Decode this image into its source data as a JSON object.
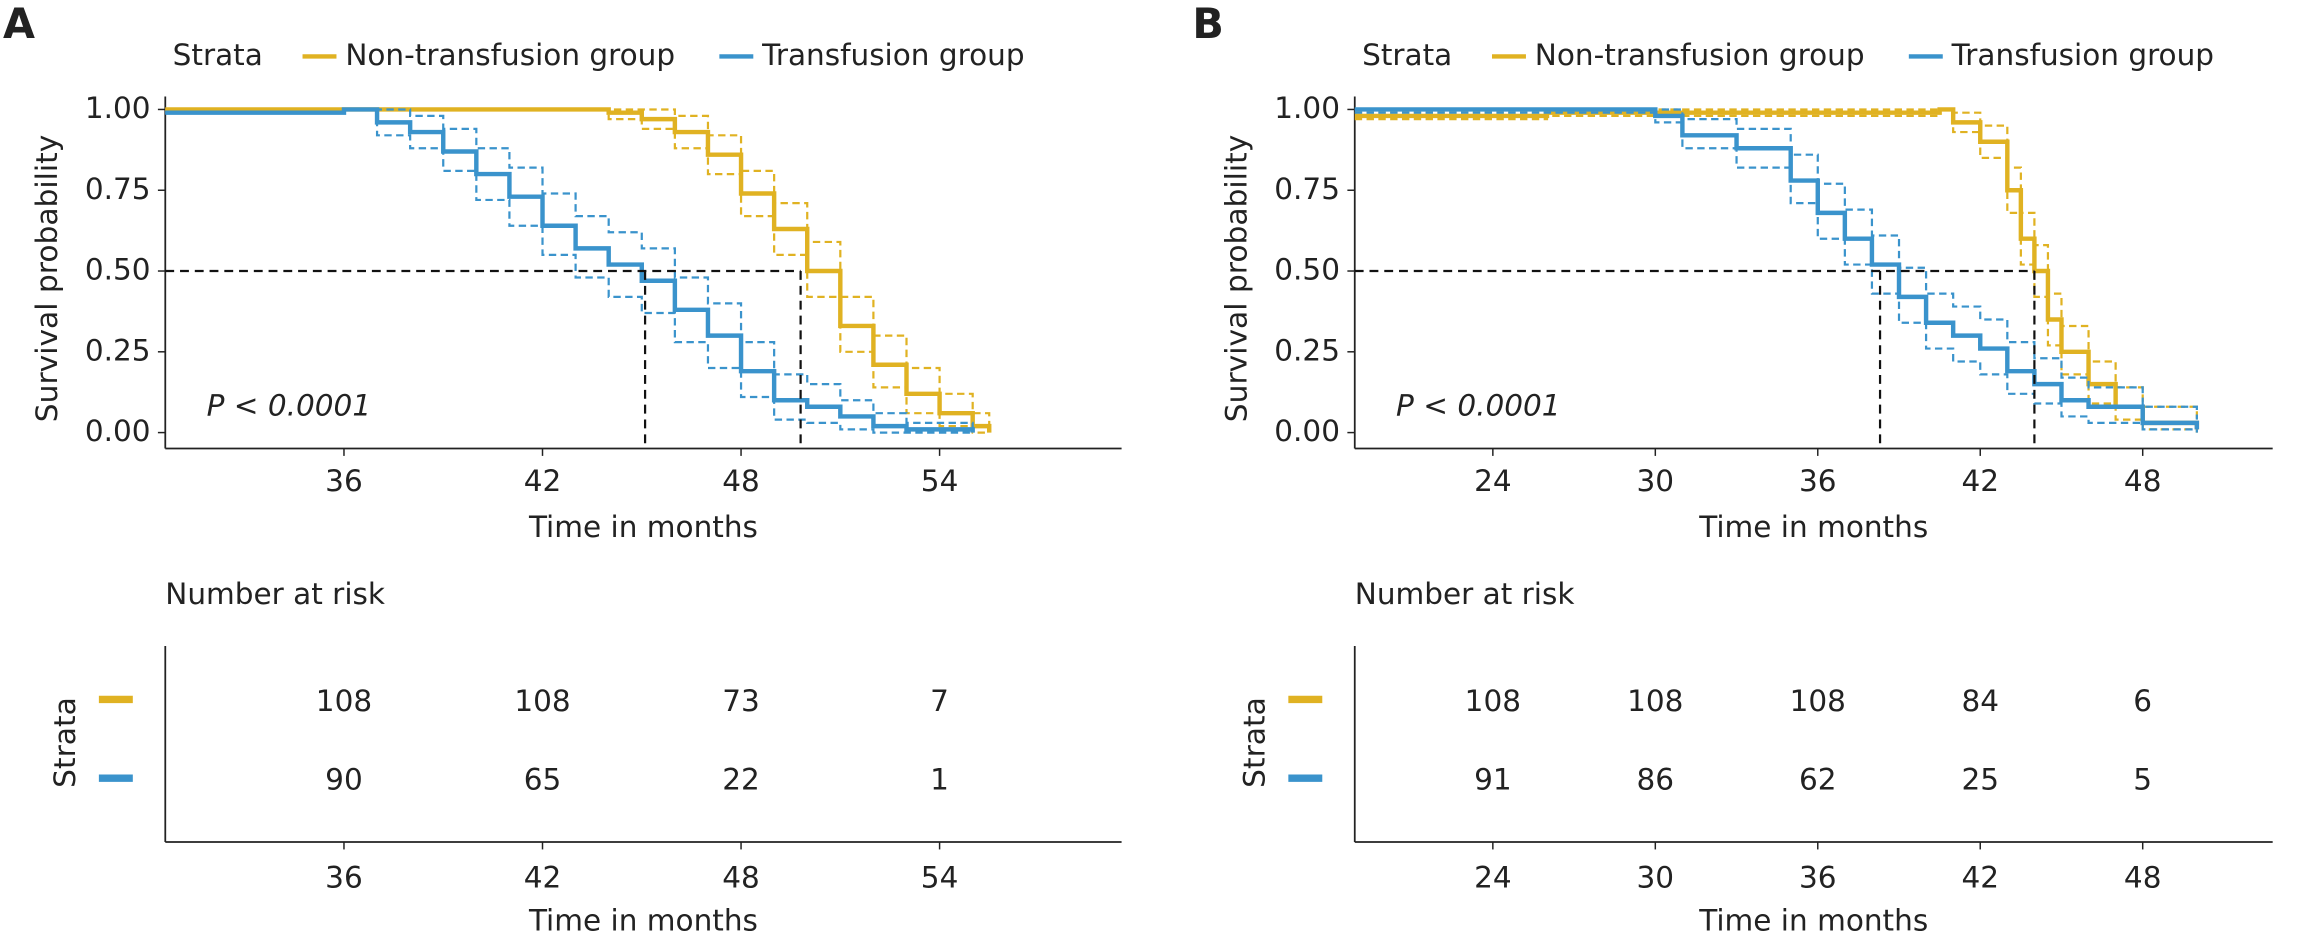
{
  "chart_data": [
    {
      "type": "survival",
      "panel_label": "A",
      "legend_title": "Strata",
      "xlabel": "Time in months",
      "ylabel": "Survival probability",
      "annotation": "P < 0.0001",
      "xlim": [
        30.6,
        59.5
      ],
      "xticks": [
        36,
        42,
        48,
        54
      ],
      "ylim": [
        -0.04,
        1.04
      ],
      "yticks": [
        {
          "value": 0,
          "label": "0.00"
        },
        {
          "value": 0.25,
          "label": "0.25"
        },
        {
          "value": 0.5,
          "label": "0.50"
        },
        {
          "value": 0.75,
          "label": "0.75"
        },
        {
          "value": 1,
          "label": "1.00"
        }
      ],
      "median_line_y": 0.5,
      "series": [
        {
          "name": "Non-transfusion group",
          "color": "#e0b222",
          "x": [
            30.6,
            43.5,
            44,
            45,
            46,
            47,
            48,
            49,
            50,
            51,
            52,
            53,
            54,
            55,
            55.5
          ],
          "values": [
            1,
            1,
            0.99,
            0.97,
            0.93,
            0.86,
            0.74,
            0.63,
            0.5,
            0.33,
            0.21,
            0.12,
            0.06,
            0.02,
            0
          ],
          "ci_lower": [
            1,
            1,
            0.97,
            0.94,
            0.88,
            0.8,
            0.67,
            0.55,
            0.42,
            0.25,
            0.14,
            0.06,
            0.02,
            0,
            0
          ],
          "ci_upper": [
            1,
            1,
            1,
            1,
            0.98,
            0.92,
            0.81,
            0.71,
            0.59,
            0.42,
            0.3,
            0.2,
            0.12,
            0.06,
            0.01
          ],
          "median": 49.8
        },
        {
          "name": "Transfusion group",
          "color": "#3a93cc",
          "x": [
            30.6,
            36,
            37,
            38,
            39,
            40,
            41,
            42,
            43,
            44,
            45,
            46,
            47,
            48,
            49,
            50,
            51,
            52,
            53,
            55
          ],
          "values": [
            0.99,
            1,
            0.96,
            0.93,
            0.87,
            0.8,
            0.73,
            0.64,
            0.57,
            0.52,
            0.47,
            0.38,
            0.3,
            0.19,
            0.1,
            0.08,
            0.05,
            0.02,
            0.01,
            0
          ],
          "ci_lower": [
            0.99,
            1,
            0.92,
            0.88,
            0.81,
            0.72,
            0.64,
            0.55,
            0.48,
            0.42,
            0.37,
            0.28,
            0.2,
            0.11,
            0.04,
            0.03,
            0.01,
            0,
            0,
            0
          ],
          "ci_upper": [
            0.99,
            1,
            1,
            0.98,
            0.94,
            0.88,
            0.82,
            0.74,
            0.67,
            0.62,
            0.57,
            0.48,
            0.4,
            0.28,
            0.18,
            0.15,
            0.1,
            0.06,
            0.03,
            0.01
          ],
          "median": 45.1
        }
      ],
      "risk_table": {
        "title": "Number at risk",
        "ylabel": "Strata",
        "series": [
          {
            "color": "#e0b222",
            "values": [
              108,
              108,
              73,
              7
            ]
          },
          {
            "color": "#3a93cc",
            "values": [
              90,
              65,
              22,
              1
            ]
          }
        ]
      }
    },
    {
      "type": "survival",
      "panel_label": "B",
      "legend_title": "Strata",
      "xlabel": "Time in months",
      "ylabel": "Survival probability",
      "annotation": "P < 0.0001",
      "xlim": [
        18.9,
        52.8
      ],
      "xticks": [
        24,
        30,
        36,
        42,
        48
      ],
      "ylim": [
        -0.04,
        1.04
      ],
      "yticks": [
        {
          "value": 0,
          "label": "0.00"
        },
        {
          "value": 0.25,
          "label": "0.25"
        },
        {
          "value": 0.5,
          "label": "0.50"
        },
        {
          "value": 0.75,
          "label": "0.75"
        },
        {
          "value": 1,
          "label": "1.00"
        }
      ],
      "median_line_y": 0.5,
      "series": [
        {
          "name": "Non-transfusion group",
          "color": "#e0b222",
          "x": [
            18.9,
            26,
            40.5,
            41,
            42,
            43,
            43.5,
            44,
            44.5,
            45,
            46,
            47,
            48,
            50
          ],
          "values": [
            0.98,
            0.99,
            1,
            0.96,
            0.9,
            0.75,
            0.6,
            0.5,
            0.35,
            0.25,
            0.15,
            0.08,
            0.03,
            0.01
          ],
          "ci_lower": [
            0.97,
            0.98,
            1,
            0.93,
            0.85,
            0.68,
            0.52,
            0.42,
            0.27,
            0.18,
            0.09,
            0.04,
            0.01,
            0
          ],
          "ci_upper": [
            0.99,
            1,
            1,
            0.99,
            0.95,
            0.82,
            0.68,
            0.58,
            0.43,
            0.33,
            0.22,
            0.14,
            0.08,
            0.03
          ],
          "median": 44.0
        },
        {
          "name": "Transfusion group",
          "color": "#3a93cc",
          "x": [
            18.9,
            30,
            31,
            33,
            35,
            36,
            37,
            38,
            39,
            40,
            41,
            42,
            43,
            44,
            45,
            46,
            48,
            50
          ],
          "values": [
            1,
            0.98,
            0.92,
            0.88,
            0.78,
            0.68,
            0.6,
            0.52,
            0.42,
            0.34,
            0.3,
            0.26,
            0.19,
            0.15,
            0.1,
            0.08,
            0.03,
            0.01
          ],
          "ci_lower": [
            0.99,
            0.96,
            0.88,
            0.82,
            0.71,
            0.6,
            0.52,
            0.43,
            0.34,
            0.26,
            0.22,
            0.18,
            0.12,
            0.09,
            0.05,
            0.03,
            0.01,
            0
          ],
          "ci_upper": [
            1,
            1,
            0.97,
            0.94,
            0.86,
            0.77,
            0.69,
            0.61,
            0.51,
            0.43,
            0.39,
            0.35,
            0.28,
            0.23,
            0.17,
            0.14,
            0.08,
            0.04
          ],
          "median": 38.3
        }
      ],
      "risk_table": {
        "title": "Number at risk",
        "ylabel": "Strata",
        "series": [
          {
            "color": "#e0b222",
            "values": [
              108,
              108,
              108,
              84,
              6
            ]
          },
          {
            "color": "#3a93cc",
            "values": [
              91,
              86,
              62,
              25,
              5
            ]
          }
        ]
      }
    }
  ]
}
